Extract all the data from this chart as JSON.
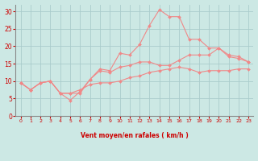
{
  "bg_color": "#cce8e4",
  "grid_color": "#aacccc",
  "line_color": "#f08888",
  "marker_color": "#f08888",
  "axis_label_color": "#cc0000",
  "tick_color": "#cc0000",
  "xlabel": "Vent moyen/en rafales ( km/h )",
  "xlim": [
    -0.5,
    23.5
  ],
  "ylim": [
    0,
    32
  ],
  "yticks": [
    0,
    5,
    10,
    15,
    20,
    25,
    30
  ],
  "xticks": [
    0,
    1,
    2,
    3,
    4,
    5,
    6,
    7,
    8,
    9,
    10,
    11,
    12,
    13,
    14,
    15,
    16,
    17,
    18,
    19,
    20,
    21,
    22,
    23
  ],
  "line1_x": [
    0,
    1,
    2,
    3,
    4,
    5,
    6,
    7,
    8,
    9,
    10,
    11,
    12,
    13,
    14,
    15,
    16,
    17,
    18,
    19,
    20,
    21,
    22,
    23
  ],
  "line1_y": [
    9.5,
    7.5,
    9.5,
    10.0,
    6.5,
    6.5,
    6.5,
    10.5,
    13.5,
    13.0,
    18.0,
    17.5,
    20.5,
    26.0,
    30.5,
    28.5,
    28.5,
    22.0,
    22.0,
    19.5,
    19.5,
    17.5,
    17.0,
    15.5
  ],
  "line2_x": [
    0,
    1,
    2,
    3,
    4,
    5,
    6,
    7,
    8,
    9,
    10,
    11,
    12,
    13,
    14,
    15,
    16,
    17,
    18,
    19,
    20,
    21,
    22,
    23
  ],
  "line2_y": [
    9.5,
    7.5,
    9.5,
    10.0,
    6.5,
    4.5,
    7.0,
    10.5,
    13.0,
    12.5,
    14.0,
    14.5,
    15.5,
    15.5,
    14.5,
    14.5,
    16.0,
    17.5,
    17.5,
    17.5,
    19.5,
    17.0,
    16.5,
    15.5
  ],
  "line3_x": [
    0,
    1,
    2,
    3,
    4,
    5,
    6,
    7,
    8,
    9,
    10,
    11,
    12,
    13,
    14,
    15,
    16,
    17,
    18,
    19,
    20,
    21,
    22,
    23
  ],
  "line3_y": [
    9.5,
    7.5,
    9.5,
    10.0,
    6.5,
    6.5,
    7.5,
    9.0,
    9.5,
    9.5,
    10.0,
    11.0,
    11.5,
    12.5,
    13.0,
    13.5,
    14.0,
    13.5,
    12.5,
    13.0,
    13.0,
    13.0,
    13.5,
    13.5
  ]
}
